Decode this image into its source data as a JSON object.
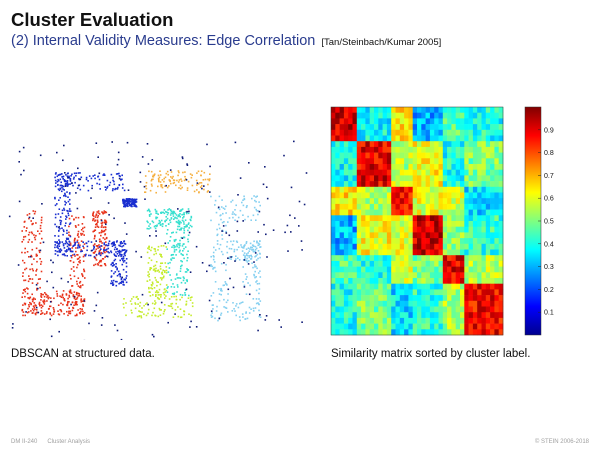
{
  "header": {
    "title": "Cluster Evaluation",
    "subtitle": "(2) Internal Validity Measures: Edge Correlation",
    "citation": "[Tan/Steinbach/Kumar 2005]"
  },
  "figures": {
    "left_caption": "DBSCAN at structured data.",
    "right_caption": "Similarity matrix sorted by cluster label."
  },
  "colorbar": {
    "ticks": [
      "0.9",
      "0.8",
      "0.7",
      "0.6",
      "0.5",
      "0.4",
      "0.3",
      "0.2",
      "0.1"
    ]
  },
  "colors": {
    "title": "#111111",
    "subtitle": "#2a3c8e",
    "cluster_red": "#e8341c",
    "cluster_blue": "#1a2fd0",
    "cluster_orange": "#f5b041",
    "cluster_cyan": "#37e0cf",
    "cluster_yellowgreen": "#c6ec2e",
    "cluster_lightblue": "#86d0f0",
    "noise": "#101c78"
  },
  "footer": {
    "slide_id": "DM II-240",
    "section": "Cluster Analysis",
    "copyright": "© STEIN 2006-2018"
  }
}
